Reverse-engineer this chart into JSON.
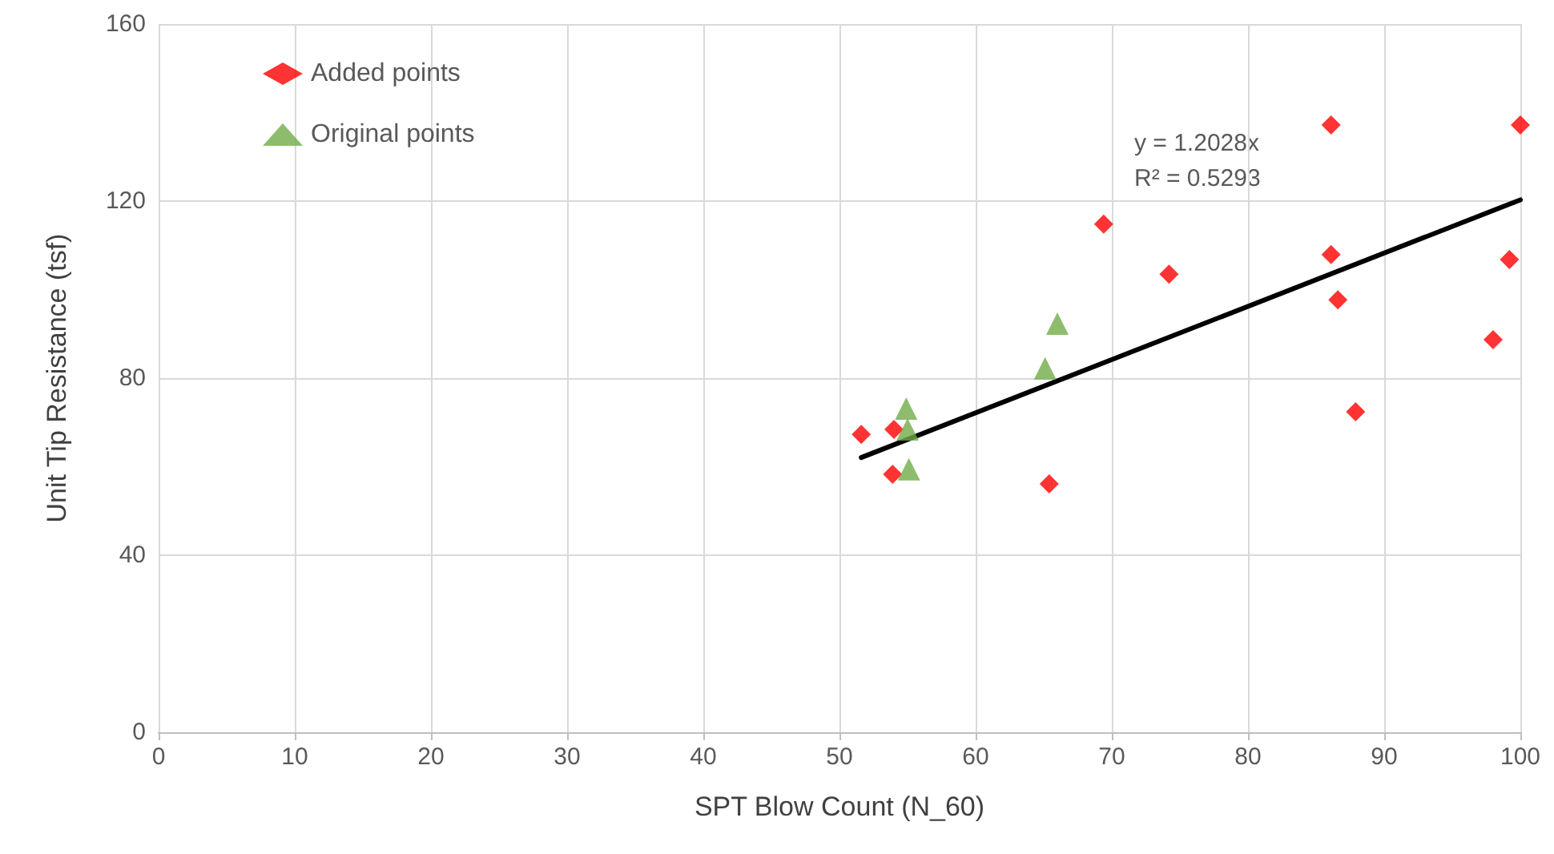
{
  "chart_data": {
    "type": "scatter",
    "xlabel": "SPT Blow Count (N_60)",
    "ylabel": "Unit Tip Resistance (tsf)",
    "xlim": [
      0,
      100
    ],
    "xticks": [
      0,
      10,
      20,
      30,
      40,
      50,
      60,
      70,
      80,
      90,
      100
    ],
    "ylim": [
      0,
      160
    ],
    "yticks": [
      0,
      40,
      80,
      120,
      160
    ],
    "grid": true,
    "legend": "top left",
    "annotations": [
      "y = 1.2028x",
      "R² = 0.5293"
    ],
    "series": [
      {
        "name": "Added points",
        "color": "#ff0000",
        "marker": "diamond",
        "x": [
          51.6,
          54.0,
          53.9,
          65.4,
          69.4,
          74.2,
          86.1,
          86.1,
          86.6,
          87.9,
          98.0,
          99.2,
          100
        ],
        "values": [
          67.3,
          68.4,
          58.3,
          56.1,
          114.8,
          103.5,
          137.2,
          107.9,
          97.7,
          72.4,
          88.7,
          106.8,
          137.2
        ]
      },
      {
        "name": "Original points",
        "color": "#70ad47",
        "marker": "triangle",
        "x": [
          54.9,
          55.0,
          55.1,
          65.1,
          66.0
        ],
        "values": [
          73.1,
          68.4,
          59.4,
          82.2,
          92.3
        ]
      },
      {
        "type": "line",
        "color": "#000000",
        "marker": "none",
        "line_style": "solid",
        "x": [
          51.6,
          100
        ],
        "values": [
          62.06,
          120.28
        ]
      }
    ]
  }
}
